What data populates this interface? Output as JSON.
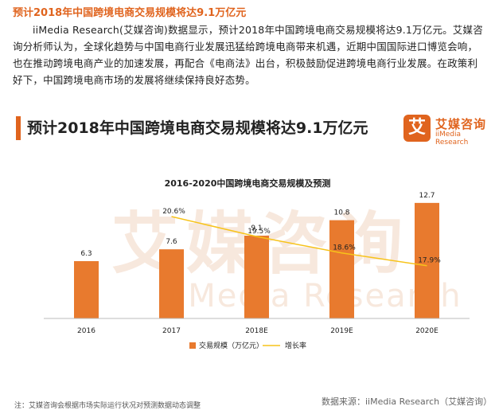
{
  "article": {
    "headline": "预计2018年中国跨境电商交易规模将达9.1万亿元",
    "paragraph": "iiMedia Research(艾媒咨询)数据显示，预计2018年中国跨境电商交易规模将达9.1万亿元。艾媒咨询分析师认为，全球化趋势与中国电商行业发展迅猛给跨境电商带来机遇，近期中国国际进口博览会响，也在推动跨境电商产业的加速发展，再配合《电商法》出台，积极鼓励促进跨境电商行业发展。在政策利好下，中国跨境电商市场的发展将继续保持良好态势。"
  },
  "card": {
    "title": "预计2018年中国跨境电商交易规模将达9.1万亿元",
    "brand_mark": "艾",
    "brand_cn": "艾媒咨询",
    "brand_en": "iiMedia Research",
    "watermark_cn": "艾媒咨询",
    "watermark_en": "iiMedia Research",
    "footnote": "注：艾媒咨询会根据市场实际运行状况对预测数据动态调整",
    "source": "数据来源：iiMedia Research（艾媒咨询）"
  },
  "colors": {
    "accent": "#e0641e",
    "bar": "#e87a2e",
    "line": "#f7c31a"
  },
  "chart_data": {
    "type": "bar",
    "title": "2016-2020中国跨境电商交易规模及预测",
    "categories": [
      "2016",
      "2017",
      "2018E",
      "2019E",
      "2020E"
    ],
    "series": [
      {
        "name": "交易规模（万亿元）",
        "type": "bar",
        "values": [
          6.3,
          7.6,
          9.1,
          10.8,
          12.7
        ],
        "labels": [
          "6.3",
          "7.6",
          "9.1",
          "10.8",
          "12.7"
        ]
      },
      {
        "name": "增长率",
        "type": "line",
        "values": [
          null,
          20.6,
          19.5,
          18.6,
          17.9
        ],
        "labels": [
          "",
          "20.6%",
          "19.5%",
          "18.6%",
          "17.9%"
        ]
      }
    ],
    "ylim_bar": [
      0,
      14
    ],
    "ylim_line": [
      15,
      22
    ],
    "legend_position": "bottom",
    "grid": false
  }
}
